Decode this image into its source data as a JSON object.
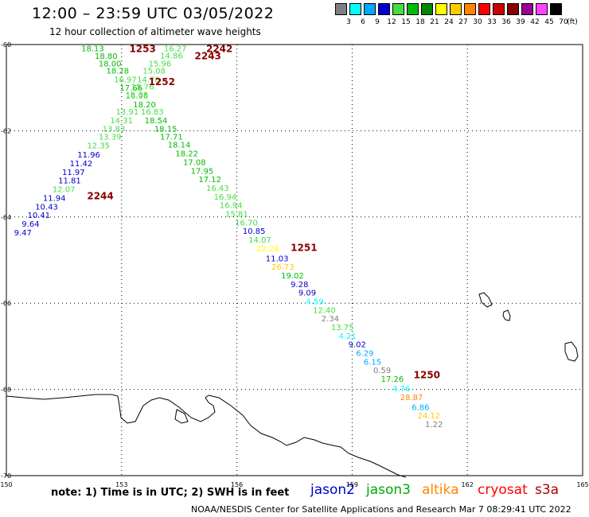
{
  "title": "12:00 – 23:59 UTC 03/05/2022",
  "subtitle": "12 hour collection of altimeter wave heights",
  "legend": {
    "unit_label": "(ft)",
    "bins": [
      {
        "label": "3",
        "color": "#808080"
      },
      {
        "label": "6",
        "color": "#00ffff"
      },
      {
        "label": "9",
        "color": "#00aaff"
      },
      {
        "label": "12",
        "color": "#0000cc"
      },
      {
        "label": "15",
        "color": "#44dd44"
      },
      {
        "label": "18",
        "color": "#00bb00"
      },
      {
        "label": "21",
        "color": "#008800"
      },
      {
        "label": "24",
        "color": "#ffff00"
      },
      {
        "label": "27",
        "color": "#ffcc00"
      },
      {
        "label": "30",
        "color": "#ff8800"
      },
      {
        "label": "33",
        "color": "#ff0000"
      },
      {
        "label": "36",
        "color": "#cc0000"
      },
      {
        "label": "39",
        "color": "#880000"
      },
      {
        "label": "42",
        "color": "#990099"
      },
      {
        "label": "45",
        "color": "#ff44ff"
      },
      {
        "label": "70",
        "color": "#000000"
      }
    ]
  },
  "axes": {
    "lon_ticks": [
      "150",
      "153",
      "156",
      "159",
      "162",
      "165"
    ],
    "lat_ticks": [
      "-60",
      "-62",
      "-64",
      "-66",
      "-68",
      "-70"
    ]
  },
  "time_labels": [
    {
      "text": "1253",
      "lon": 153.2,
      "lat": -60.08
    },
    {
      "text": "2242",
      "lon": 155.2,
      "lat": -60.08
    },
    {
      "text": "2243",
      "lon": 154.9,
      "lat": -60.25
    },
    {
      "text": "1252",
      "lon": 153.7,
      "lat": -60.85
    },
    {
      "text": "2244",
      "lon": 152.1,
      "lat": -63.5
    },
    {
      "text": "1251",
      "lon": 157.4,
      "lat": -64.7
    },
    {
      "text": "1250",
      "lon": 160.6,
      "lat": -67.65
    }
  ],
  "observations": [
    {
      "v": "18.13",
      "lon": 151.95,
      "lat": -60.08,
      "c": "#00bb00"
    },
    {
      "v": "18.80",
      "lon": 152.3,
      "lat": -60.26,
      "c": "#00bb00"
    },
    {
      "v": "18.00",
      "lon": 152.4,
      "lat": -60.43,
      "c": "#00bb00"
    },
    {
      "v": "18.28",
      "lon": 152.6,
      "lat": -60.6,
      "c": "#00bb00"
    },
    {
      "v": "16.97",
      "lon": 152.8,
      "lat": -60.8,
      "c": "#44dd44"
    },
    {
      "v": "17.66",
      "lon": 152.95,
      "lat": -61.0,
      "c": "#00bb00"
    },
    {
      "v": "16.96",
      "lon": 153.1,
      "lat": -61.18,
      "c": "#44dd44"
    },
    {
      "v": "18.20",
      "lon": 153.3,
      "lat": -61.38,
      "c": "#00bb00"
    },
    {
      "v": "16.83",
      "lon": 153.5,
      "lat": -61.55,
      "c": "#44dd44"
    },
    {
      "v": "18.54",
      "lon": 153.6,
      "lat": -61.75,
      "c": "#00bb00"
    },
    {
      "v": "18.15",
      "lon": 153.85,
      "lat": -61.95,
      "c": "#00bb00"
    },
    {
      "v": "17.71",
      "lon": 154.0,
      "lat": -62.13,
      "c": "#00bb00"
    },
    {
      "v": "18.14",
      "lon": 154.2,
      "lat": -62.32,
      "c": "#00bb00"
    },
    {
      "v": "18.22",
      "lon": 154.4,
      "lat": -62.52,
      "c": "#00bb00"
    },
    {
      "v": "17.08",
      "lon": 154.6,
      "lat": -62.72,
      "c": "#00bb00"
    },
    {
      "v": "17.95",
      "lon": 154.8,
      "lat": -62.92,
      "c": "#00bb00"
    },
    {
      "v": "17.12",
      "lon": 155.0,
      "lat": -63.12,
      "c": "#00bb00"
    },
    {
      "v": "16.43",
      "lon": 155.2,
      "lat": -63.32,
      "c": "#44dd44"
    },
    {
      "v": "16.94",
      "lon": 155.4,
      "lat": -63.52,
      "c": "#44dd44"
    },
    {
      "v": "16.94",
      "lon": 155.55,
      "lat": -63.72,
      "c": "#44dd44"
    },
    {
      "v": "15.81",
      "lon": 155.7,
      "lat": -63.92,
      "c": "#44dd44"
    },
    {
      "v": "16.70",
      "lon": 155.95,
      "lat": -64.12,
      "c": "#44dd44"
    },
    {
      "v": "10.85",
      "lon": 156.15,
      "lat": -64.32,
      "c": "#0000cc"
    },
    {
      "v": "14.07",
      "lon": 156.3,
      "lat": -64.52,
      "c": "#44dd44"
    },
    {
      "v": "22.26",
      "lon": 156.5,
      "lat": -64.72,
      "c": "#ffff00"
    },
    {
      "v": "11.03",
      "lon": 156.75,
      "lat": -64.95,
      "c": "#0000cc"
    },
    {
      "v": "26.73",
      "lon": 156.9,
      "lat": -65.15,
      "c": "#ffcc00"
    },
    {
      "v": "19.02",
      "lon": 157.15,
      "lat": -65.35,
      "c": "#00bb00"
    },
    {
      "v": "9.28",
      "lon": 157.4,
      "lat": -65.55,
      "c": "#0000cc"
    },
    {
      "v": "9.09",
      "lon": 157.6,
      "lat": -65.75,
      "c": "#0000cc"
    },
    {
      "v": "4.59",
      "lon": 157.8,
      "lat": -65.95,
      "c": "#00ffff"
    },
    {
      "v": "12.40",
      "lon": 157.98,
      "lat": -66.15,
      "c": "#44dd44"
    },
    {
      "v": "2.34",
      "lon": 158.2,
      "lat": -66.35,
      "c": "#808080"
    },
    {
      "v": "13.75",
      "lon": 158.45,
      "lat": -66.55,
      "c": "#44dd44"
    },
    {
      "v": "4.21",
      "lon": 158.65,
      "lat": -66.75,
      "c": "#00ffff"
    },
    {
      "v": "9.02",
      "lon": 158.9,
      "lat": -66.95,
      "c": "#0000cc"
    },
    {
      "v": "6.29",
      "lon": 159.1,
      "lat": -67.15,
      "c": "#00aaff"
    },
    {
      "v": "6.15",
      "lon": 159.3,
      "lat": -67.35,
      "c": "#00aaff"
    },
    {
      "v": "0.59",
      "lon": 159.55,
      "lat": -67.55,
      "c": "#808080"
    },
    {
      "v": "17.26",
      "lon": 159.75,
      "lat": -67.75,
      "c": "#00bb00"
    },
    {
      "v": "4.76",
      "lon": 160.05,
      "lat": -67.97,
      "c": "#00ffff"
    },
    {
      "v": "28.87",
      "lon": 160.25,
      "lat": -68.17,
      "c": "#ff8800"
    },
    {
      "v": "6.86",
      "lon": 160.55,
      "lat": -68.4,
      "c": "#00aaff"
    },
    {
      "v": "24.12",
      "lon": 160.7,
      "lat": -68.6,
      "c": "#ffcc00"
    },
    {
      "v": "1.22",
      "lon": 160.9,
      "lat": -68.8,
      "c": "#808080"
    },
    {
      "v": "16.27",
      "lon": 154.1,
      "lat": -60.08,
      "c": "#44dd44"
    },
    {
      "v": "14.86",
      "lon": 154.0,
      "lat": -60.25,
      "c": "#44dd44"
    },
    {
      "v": "15.96",
      "lon": 153.7,
      "lat": -60.43,
      "c": "#44dd44"
    },
    {
      "v": "15.08",
      "lon": 153.55,
      "lat": -60.6,
      "c": "#44dd44"
    },
    {
      "v": "14.76",
      "lon": 153.4,
      "lat": -60.8,
      "c": "#44dd44"
    },
    {
      "v": "15.76",
      "lon": 153.25,
      "lat": -60.97,
      "c": "#44dd44"
    },
    {
      "v": "15.38",
      "lon": 153.1,
      "lat": -61.15,
      "c": "#44dd44"
    },
    {
      "v": "13.91",
      "lon": 152.85,
      "lat": -61.55,
      "c": "#44dd44"
    },
    {
      "v": "14.31",
      "lon": 152.7,
      "lat": -61.75,
      "c": "#44dd44"
    },
    {
      "v": "13.83",
      "lon": 152.5,
      "lat": -61.95,
      "c": "#44dd44"
    },
    {
      "v": "13.39",
      "lon": 152.4,
      "lat": -62.13,
      "c": "#44dd44"
    },
    {
      "v": "12.35",
      "lon": 152.1,
      "lat": -62.33,
      "c": "#44dd44"
    },
    {
      "v": "11.96",
      "lon": 151.85,
      "lat": -62.55,
      "c": "#0000cc"
    },
    {
      "v": "11.42",
      "lon": 151.65,
      "lat": -62.75,
      "c": "#0000cc"
    },
    {
      "v": "11.97",
      "lon": 151.45,
      "lat": -62.95,
      "c": "#0000cc"
    },
    {
      "v": "11.81",
      "lon": 151.35,
      "lat": -63.15,
      "c": "#0000cc"
    },
    {
      "v": "12.07",
      "lon": 151.2,
      "lat": -63.35,
      "c": "#44dd44"
    },
    {
      "v": "11.94",
      "lon": 150.95,
      "lat": -63.55,
      "c": "#0000cc"
    },
    {
      "v": "10.43",
      "lon": 150.75,
      "lat": -63.75,
      "c": "#0000cc"
    },
    {
      "v": "10.41",
      "lon": 150.55,
      "lat": -63.95,
      "c": "#0000cc"
    },
    {
      "v": "9.64",
      "lon": 150.4,
      "lat": -64.15,
      "c": "#0000cc"
    },
    {
      "v": "9.47",
      "lon": 150.2,
      "lat": -64.35,
      "c": "#0000cc"
    }
  ],
  "footer": {
    "note": "note: 1) Time is in UTC; 2) SWH is in feet",
    "satellites": [
      {
        "name": "jason2",
        "color": "#0000cc"
      },
      {
        "name": "jason3",
        "color": "#00aa00"
      },
      {
        "name": "altika",
        "color": "#ff8800"
      },
      {
        "name": "cryosat",
        "color": "#ff0000"
      },
      {
        "name": "s3a",
        "color": "#aa0000"
      }
    ],
    "credit": "NOAA/NESDIS Center for Satellite Applications and Research   Mar  7 08:29:41 UTC 2022"
  }
}
